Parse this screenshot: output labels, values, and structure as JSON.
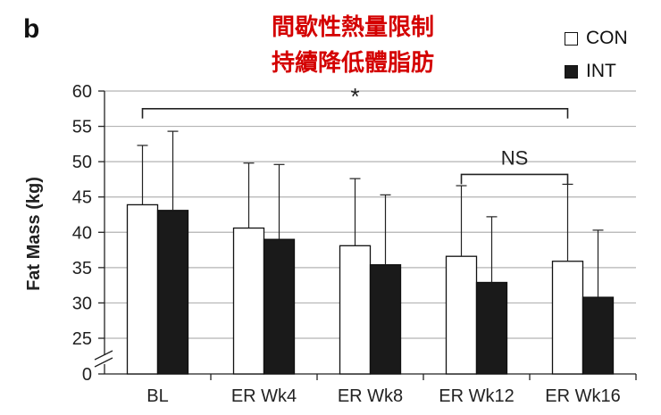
{
  "panel_letter": "b",
  "title_lines": [
    "間歇性熱量限制",
    "持續降低體脂肪"
  ],
  "chart_data": {
    "type": "bar",
    "ylabel": "Fat Mass (kg)",
    "xlabel": "",
    "categories": [
      "BL",
      "ER Wk4",
      "ER Wk8",
      "ER Wk12",
      "ER Wk16"
    ],
    "ylim": [
      0,
      60
    ],
    "axis_break": [
      0,
      20
    ],
    "yticks": [
      0,
      25,
      30,
      35,
      40,
      45,
      50,
      55,
      60
    ],
    "grid": true,
    "legend_position": "top-right",
    "series": [
      {
        "name": "CON",
        "color": "#ffffff",
        "values": [
          43.9,
          40.6,
          38.1,
          36.6,
          35.9
        ],
        "error": [
          8.4,
          9.2,
          9.5,
          10.0,
          10.9
        ]
      },
      {
        "name": "INT",
        "color": "#1a1a1a",
        "values": [
          43.1,
          39.0,
          35.4,
          32.9,
          30.8
        ],
        "error": [
          11.2,
          10.6,
          9.9,
          9.3,
          9.5
        ]
      }
    ],
    "annotations": [
      {
        "text": "*",
        "from_category": "BL",
        "to_category": "ER Wk16",
        "level": 57.5
      },
      {
        "text": "NS",
        "from_category": "ER Wk12",
        "to_category": "ER Wk16",
        "level": 48.2
      }
    ]
  }
}
